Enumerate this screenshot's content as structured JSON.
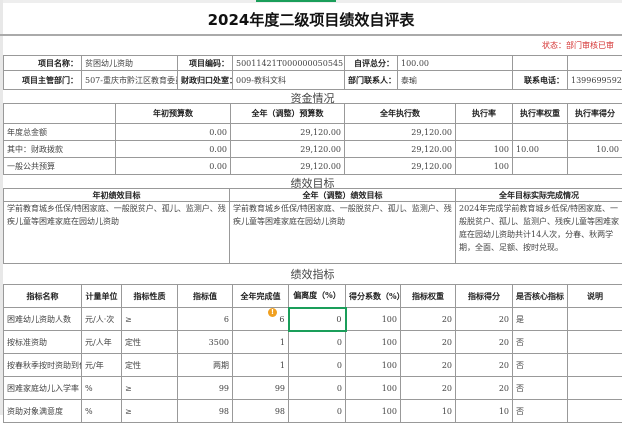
{
  "title": "2024年度二级项目绩效自评表",
  "status": "状态：部门审核已审",
  "info": {
    "row1": [
      {
        "label": "项目名称：",
        "value": "贫困幼儿资助"
      },
      {
        "label": "项目编码：",
        "value": "50011421T000000050545"
      },
      {
        "label": "自评总分：",
        "value": "100.00"
      }
    ],
    "row2": [
      {
        "label": "项目主管部门：",
        "value": "507-重庆市黔江区教育委员"
      },
      {
        "label": "财政归口处室：",
        "value": "009-教科文科"
      },
      {
        "label": "部门联系人：",
        "value": "泰瑜"
      },
      {
        "label": "联系电话：",
        "value": "13996995928"
      }
    ]
  },
  "funds": {
    "title": "资金情况",
    "headers": [
      "",
      "年初预算数",
      "全年（调整）预算数",
      "全年执行数",
      "执行率",
      "执行率权重",
      "执行率得分"
    ],
    "rows": [
      [
        "年度总金额",
        "0.00",
        "29,120.00",
        "29,120.00",
        "",
        "",
        ""
      ],
      [
        "其中：财政拨款",
        "0.00",
        "29,120.00",
        "29,120.00",
        "100",
        "10.00",
        "10.00"
      ],
      [
        "一般公共预算",
        "0.00",
        "29,120.00",
        "29,120.00",
        "100",
        "",
        ""
      ]
    ]
  },
  "goals": {
    "title": "绩效目标",
    "headers": [
      "年初绩效目标",
      "全年（调整）绩效目标",
      "全年目标实际完成情况"
    ],
    "values": [
      "学前教育城乡低保/特困家庭、一般脱贫户、孤儿、监测户、残疾儿童等困难家庭在园幼儿资助",
      "学前教育城乡低保/特困家庭、一般脱贫户、孤儿、监测户、残疾儿童等困难家庭在园幼儿资助",
      "2024年完成学前教育城乡低保/特困家庭、一般脱贫户、孤儿、监测户、残疾儿童等困难家庭在园幼儿资助共计14人次，分春、秋两学期，全面、足额、按时兑现。"
    ]
  },
  "indicators": {
    "title": "绩效指标",
    "headers": [
      "指标名称",
      "计量单位",
      "指标性质",
      "指标值",
      "全年完成值",
      "偏离度（%）",
      "得分系数（%）",
      "指标权重",
      "指标得分",
      "是否核心指标",
      "说明"
    ],
    "rows": [
      [
        "困难幼儿资助人数",
        "元/人·次",
        "≥",
        "6",
        "6",
        "0",
        "100",
        "20",
        "20",
        "是",
        ""
      ],
      [
        "按标准资助",
        "元/人年",
        "定性",
        "3500",
        "1",
        "0",
        "100",
        "20",
        "20",
        "否",
        ""
      ],
      [
        "按春秋季按时资助到位",
        "元/年",
        "定性",
        "两期",
        "1",
        "0",
        "100",
        "20",
        "20",
        "否",
        ""
      ],
      [
        "困难家庭幼儿入学率",
        "%",
        "≥",
        "99",
        "99",
        "0",
        "100",
        "20",
        "20",
        "否",
        ""
      ],
      [
        "资助对象满意度",
        "%",
        "≥",
        "98",
        "98",
        "0",
        "100",
        "10",
        "10",
        "否",
        ""
      ]
    ]
  }
}
